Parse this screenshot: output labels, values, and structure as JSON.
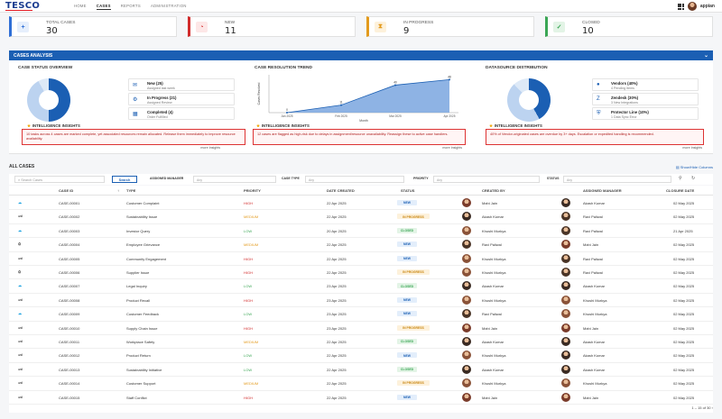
{
  "nav": {
    "logo": "TESCO",
    "links": [
      "Home",
      "Cases",
      "Reports",
      "Administration"
    ],
    "active": "Cases",
    "brand": "appian"
  },
  "kpis": [
    {
      "label": "Total Cases",
      "value": "30",
      "icon": "+",
      "color": "#2f6fd6",
      "bg": "#e6effc"
    },
    {
      "label": "New",
      "value": "11",
      "icon": "◔",
      "color": "#d12b2b",
      "bg": "#fde7e7"
    },
    {
      "label": "In Progress",
      "value": "9",
      "icon": "⧗",
      "color": "#e39a1d",
      "bg": "#fdf1db"
    },
    {
      "label": "Closed",
      "value": "10",
      "icon": "✓",
      "color": "#3aa655",
      "bg": "#e3f4e6"
    }
  ],
  "analysis": {
    "title": "Cases Analysis",
    "status_overview": {
      "title": "Case Status Overview",
      "legend": [
        {
          "name": "New (25)",
          "sub": "Assigned last week",
          "icon": "✉"
        },
        {
          "name": "In Progress (21)",
          "sub": "Assigned Review",
          "icon": "⚙"
        },
        {
          "name": "Completed (4)",
          "sub": "Order Fulfilled",
          "icon": "▦"
        }
      ],
      "insight_title": "Intelligence Insights",
      "insight": "10 tasks across 4 cases are marked complete, yet associated resources remain allocated. Release them immediately to improve resource availability.",
      "link": "more Insights"
    },
    "trend": {
      "title": "Case Resolution Trend",
      "insight_title": "Intelligence Insights",
      "insight": "12 cases are flagged as high-risk due to delays in assignment/resource unavailability. Reassign these to active case handlers.",
      "link": "more Insights"
    },
    "datasource": {
      "title": "Datasource Distribution",
      "legend": [
        {
          "name": "Vendors (40%)",
          "sub": "4 Pending Items",
          "icon": "●"
        },
        {
          "name": "Zendesk (30%)",
          "sub": "3 New Integrations",
          "icon": "Z"
        },
        {
          "name": "Protector Line (10%)",
          "sub": "1 Data Sync Error",
          "icon": "⛨"
        }
      ],
      "insight_title": "Intelligence Insights",
      "insight": "40% of Vendor-originated cases are overdue by 3+ days. Escalation or expedited handling is recommended.",
      "link": "more Insights"
    }
  },
  "chart_data": {
    "type": "area",
    "title": "Case Resolution Trend",
    "xlabel": "Month",
    "ylabel": "Cases Resolved",
    "categories": [
      "Jan 2025",
      "Feb 2025",
      "Mar 2025",
      "Apr 2025"
    ],
    "values": [
      0,
      11,
      40,
      48
    ],
    "ylim": [
      0,
      55
    ]
  },
  "cases": {
    "title": "All Cases",
    "show_hide": "Show/Hide Columns",
    "search_placeholder": "Search Cases",
    "search_button": "Search",
    "filters": [
      {
        "label": "Assigned Manager",
        "value": "Any"
      },
      {
        "label": "Case Type",
        "value": "Any"
      },
      {
        "label": "Priority",
        "value": "Any"
      },
      {
        "label": "Status",
        "value": "Any"
      }
    ],
    "columns": [
      "Case ID",
      "Type",
      "Priority",
      "Date Created",
      "Status",
      "Created By",
      "Assigned Manager",
      "Closure Date"
    ],
    "rows": [
      {
        "src": "salesforce",
        "id": "CASE-00001",
        "type": "Customer Complaint",
        "priority": "HIGH",
        "date": "22 Apr 2025",
        "status": "NEW",
        "by": "Mahi Jain",
        "mgr": "Akash Kumar",
        "closure": "02 May 2025"
      },
      {
        "src": "zendesk",
        "id": "CASE-00002",
        "type": "Sustainability Issue",
        "priority": "MEDIUM",
        "date": "22 Apr 2025",
        "status": "IN PROGRESS",
        "by": "Akash Kumar",
        "mgr": "Ravi Paliwal",
        "closure": "02 May 2025"
      },
      {
        "src": "salesforce",
        "id": "CASE-00003",
        "type": "Investor Query",
        "priority": "LOW",
        "date": "20 Apr 2025",
        "status": "CLOSED",
        "by": "Khushi Murkya",
        "mgr": "Ravi Paliwal",
        "closure": "21 Apr 2025"
      },
      {
        "src": "vendor",
        "id": "CASE-00004",
        "type": "Employee Grievance",
        "priority": "MEDIUM",
        "date": "22 Apr 2025",
        "status": "NEW",
        "by": "Ravi Paliwal",
        "mgr": "Mahi Jain",
        "closure": "02 May 2025"
      },
      {
        "src": "zendesk",
        "id": "CASE-00005",
        "type": "Community Engagement",
        "priority": "HIGH",
        "date": "22 Apr 2025",
        "status": "NEW",
        "by": "Khushi Murkya",
        "mgr": "Ravi Paliwal",
        "closure": "02 May 2025"
      },
      {
        "src": "vendor",
        "id": "CASE-00006",
        "type": "Supplier Issue",
        "priority": "HIGH",
        "date": "22 Apr 2025",
        "status": "IN PROGRESS",
        "by": "Khushi Murkya",
        "mgr": "Ravi Paliwal",
        "closure": "02 May 2025"
      },
      {
        "src": "salesforce",
        "id": "CASE-00007",
        "type": "Legal Inquiry",
        "priority": "LOW",
        "date": "23 Apr 2025",
        "status": "CLOSED",
        "by": "Akash Kumar",
        "mgr": "Akash Kumar",
        "closure": "02 May 2025"
      },
      {
        "src": "zendesk",
        "id": "CASE-00008",
        "type": "Product Recall",
        "priority": "HIGH",
        "date": "23 Apr 2025",
        "status": "NEW",
        "by": "Khushi Murkya",
        "mgr": "Khushi Murkya",
        "closure": "02 May 2025"
      },
      {
        "src": "salesforce",
        "id": "CASE-00009",
        "type": "Customer Feedback",
        "priority": "LOW",
        "date": "23 Apr 2025",
        "status": "NEW",
        "by": "Ravi Paliwal",
        "mgr": "Khushi Murkya",
        "closure": "02 May 2025"
      },
      {
        "src": "zendesk",
        "id": "CASE-00010",
        "type": "Supply Chain Issue",
        "priority": "HIGH",
        "date": "23 Apr 2025",
        "status": "IN PROGRESS",
        "by": "Mahi Jain",
        "mgr": "Mahi Jain",
        "closure": "02 May 2025"
      },
      {
        "src": "zendesk",
        "id": "CASE-00011",
        "type": "Workplace Safety",
        "priority": "MEDIUM",
        "date": "22 Apr 2025",
        "status": "CLOSED",
        "by": "Akash Kumar",
        "mgr": "Akash Kumar",
        "closure": "02 May 2025"
      },
      {
        "src": "zendesk",
        "id": "CASE-00012",
        "type": "Product Return",
        "priority": "LOW",
        "date": "22 Apr 2025",
        "status": "NEW",
        "by": "Khushi Murkya",
        "mgr": "Akash Kumar",
        "closure": "02 May 2025"
      },
      {
        "src": "zendesk",
        "id": "CASE-00013",
        "type": "Sustainability Initiative",
        "priority": "LOW",
        "date": "22 Apr 2025",
        "status": "CLOSED",
        "by": "Akash Kumar",
        "mgr": "Akash Kumar",
        "closure": "02 May 2025"
      },
      {
        "src": "zendesk",
        "id": "CASE-00014",
        "type": "Customer Support",
        "priority": "MEDIUM",
        "date": "22 Apr 2025",
        "status": "IN PROGRESS",
        "by": "Khushi Murkya",
        "mgr": "Khushi Murkya",
        "closure": "02 May 2025"
      },
      {
        "src": "zendesk",
        "id": "CASE-00015",
        "type": "Staff Conflict",
        "priority": "HIGH",
        "date": "22 Apr 2025",
        "status": "NEW",
        "by": "Mahi Jain",
        "mgr": "Mahi Jain",
        "closure": "02 May 2025"
      }
    ],
    "pager": "1 – 15 of 30"
  }
}
